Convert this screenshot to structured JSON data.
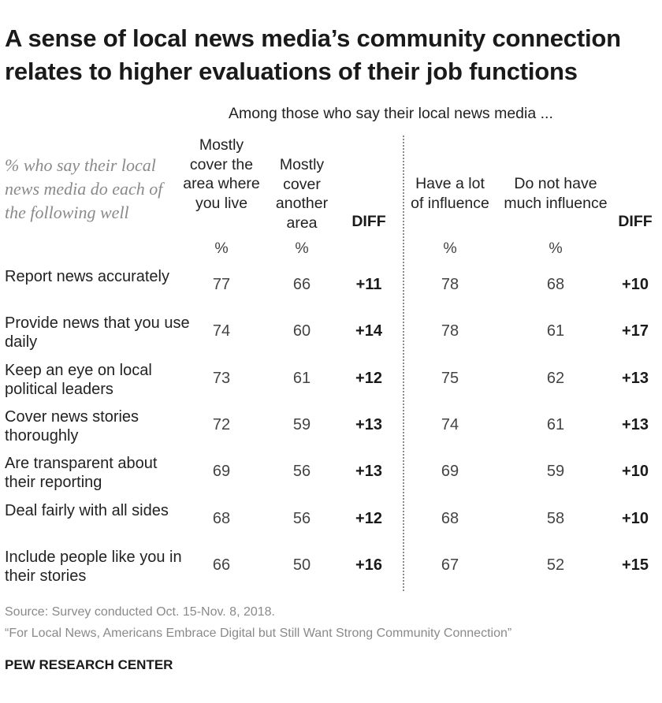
{
  "title": "A sense of local news media’s community connection relates to higher evaluations of their job functions",
  "group_label": "Among those who say their local news media ...",
  "stub_label": "% who say their local news media do each of the following well",
  "columns": [
    {
      "label": "Mostly cover the area where you live",
      "unit": "%"
    },
    {
      "label": "Mostly cover another area",
      "unit": "%"
    },
    {
      "label": "DIFF",
      "unit": ""
    },
    {
      "label": "Have a lot of influence",
      "unit": "%"
    },
    {
      "label": "Do not have much influence",
      "unit": "%"
    },
    {
      "label": "DIFF",
      "unit": ""
    }
  ],
  "rows": [
    {
      "label": "Report news accurately",
      "values": [
        "77",
        "66",
        "+11",
        "78",
        "68",
        "+10"
      ]
    },
    {
      "label": "Provide news that you use daily",
      "values": [
        "74",
        "60",
        "+14",
        "78",
        "61",
        "+17"
      ]
    },
    {
      "label": "Keep an eye on local political leaders",
      "values": [
        "73",
        "61",
        "+12",
        "75",
        "62",
        "+13"
      ]
    },
    {
      "label": "Cover news stories thoroughly",
      "values": [
        "72",
        "59",
        "+13",
        "74",
        "61",
        "+13"
      ]
    },
    {
      "label": "Are transparent about their reporting",
      "values": [
        "69",
        "56",
        "+13",
        "69",
        "59",
        "+10"
      ]
    },
    {
      "label": "Deal fairly with all sides",
      "values": [
        "68",
        "56",
        "+12",
        "68",
        "58",
        "+10"
      ]
    },
    {
      "label": "Include people like you in their stories",
      "values": [
        "66",
        "50",
        "+16",
        "67",
        "52",
        "+15"
      ]
    }
  ],
  "source": "Source: Survey conducted Oct. 15-Nov. 8, 2018.",
  "report": "“For Local News, Americans Embrace Digital but Still Want Strong Community Connection”",
  "brand": "PEW RESEARCH CENTER",
  "chart_data": {
    "type": "table",
    "title": "A sense of local news media’s community connection relates to higher evaluations of their job functions",
    "subtitle": "Among those who say their local news media ...",
    "categories": [
      "Report news accurately",
      "Provide news that you use daily",
      "Keep an eye on local political leaders",
      "Cover news stories thoroughly",
      "Are transparent about their reporting",
      "Deal fairly with all sides",
      "Include people like you in their stories"
    ],
    "series": [
      {
        "name": "Mostly cover the area where you live",
        "values": [
          77,
          74,
          73,
          72,
          69,
          68,
          66
        ]
      },
      {
        "name": "Mostly cover another area",
        "values": [
          66,
          60,
          61,
          59,
          56,
          56,
          50
        ]
      },
      {
        "name": "DIFF (area)",
        "values": [
          11,
          14,
          12,
          13,
          13,
          12,
          16
        ]
      },
      {
        "name": "Have a lot of influence",
        "values": [
          78,
          78,
          75,
          74,
          69,
          68,
          67
        ]
      },
      {
        "name": "Do not have much influence",
        "values": [
          68,
          61,
          62,
          61,
          59,
          58,
          52
        ]
      },
      {
        "name": "DIFF (influence)",
        "values": [
          10,
          17,
          13,
          13,
          10,
          10,
          15
        ]
      }
    ],
    "unit": "%"
  }
}
